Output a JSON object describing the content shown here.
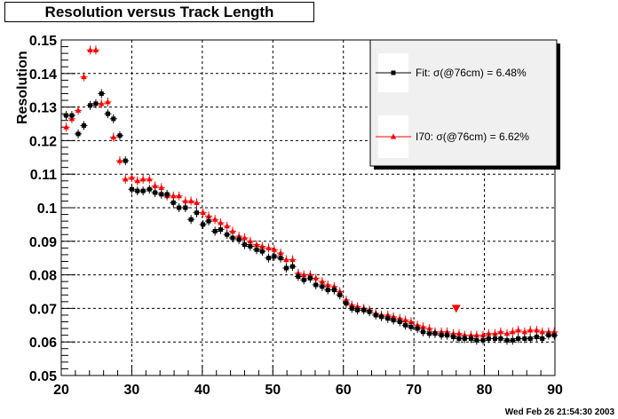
{
  "chart_data": {
    "type": "scatter",
    "title": "Resolution versus Track Length",
    "ylabel": "Resolution",
    "xlabel": "",
    "xlim": [
      20,
      90
    ],
    "ylim": [
      0.05,
      0.15
    ],
    "grid": true,
    "legend_position": "top-right",
    "x_ticks": [
      "20",
      "30",
      "40",
      "50",
      "60",
      "70",
      "80",
      "90"
    ],
    "y_ticks": [
      "0.05",
      "0.06",
      "0.07",
      "0.08",
      "0.09",
      "0.1",
      "0.11",
      "0.12",
      "0.13",
      "0.14",
      "0.15"
    ],
    "series": [
      {
        "name": "Fit:  σ(@76cm) =  6.48%",
        "color": "#000000",
        "marker": "square",
        "x": [
          20.7,
          21.5,
          22.4,
          23.2,
          24.1,
          24.9,
          25.7,
          26.6,
          27.4,
          28.3,
          29.1,
          30.0,
          30.8,
          31.6,
          32.5,
          33.3,
          34.2,
          35.0,
          35.9,
          36.7,
          37.6,
          38.4,
          39.2,
          40.1,
          40.9,
          41.8,
          42.6,
          43.5,
          44.3,
          45.2,
          46.0,
          46.8,
          47.7,
          48.5,
          49.4,
          50.2,
          51.1,
          51.9,
          52.8,
          53.6,
          54.4,
          55.3,
          56.1,
          57.0,
          57.8,
          58.7,
          59.5,
          60.4,
          61.2,
          62.0,
          62.9,
          63.7,
          64.6,
          65.4,
          66.3,
          67.1,
          68.0,
          68.8,
          69.6,
          70.5,
          71.3,
          72.2,
          73.0,
          73.9,
          74.7,
          75.6,
          76.4,
          77.2,
          78.1,
          78.9,
          79.8,
          80.6,
          81.5,
          82.3,
          83.2,
          84.0,
          84.8,
          85.7,
          86.5,
          87.4,
          88.2,
          89.1,
          89.9
        ],
        "y": [
          0.1275,
          0.1275,
          0.122,
          0.1245,
          0.1305,
          0.131,
          0.134,
          0.128,
          0.1265,
          0.1215,
          0.114,
          0.1055,
          0.105,
          0.105,
          0.1055,
          0.1045,
          0.104,
          0.104,
          0.1015,
          0.1,
          0.1,
          0.0965,
          0.0985,
          0.095,
          0.096,
          0.093,
          0.0935,
          0.092,
          0.091,
          0.0905,
          0.089,
          0.0885,
          0.0875,
          0.087,
          0.085,
          0.0855,
          0.085,
          0.082,
          0.0825,
          0.0795,
          0.0785,
          0.079,
          0.077,
          0.0765,
          0.0755,
          0.0755,
          0.074,
          0.0715,
          0.07,
          0.0695,
          0.0695,
          0.069,
          0.068,
          0.0675,
          0.067,
          0.0665,
          0.066,
          0.065,
          0.0645,
          0.064,
          0.063,
          0.0625,
          0.0625,
          0.062,
          0.062,
          0.0615,
          0.061,
          0.061,
          0.061,
          0.0605,
          0.0605,
          0.061,
          0.061,
          0.061,
          0.0605,
          0.0605,
          0.061,
          0.061,
          0.061,
          0.0615,
          0.061,
          0.062,
          0.062
        ]
      },
      {
        "name": "I70:  σ(@76cm) =  6.62%",
        "color": "#ff0000",
        "marker": "triangle",
        "x": [
          20.7,
          21.5,
          22.4,
          23.2,
          24.1,
          24.9,
          25.7,
          26.6,
          27.4,
          28.3,
          29.1,
          30.0,
          30.8,
          31.6,
          32.5,
          33.3,
          34.2,
          35.0,
          35.9,
          36.7,
          37.6,
          38.4,
          39.2,
          40.1,
          40.9,
          41.8,
          42.6,
          43.5,
          44.3,
          45.2,
          46.0,
          46.8,
          47.7,
          48.5,
          49.4,
          50.2,
          51.1,
          51.9,
          52.8,
          53.6,
          54.4,
          55.3,
          56.1,
          57.0,
          57.8,
          58.7,
          59.5,
          60.4,
          61.2,
          62.0,
          62.9,
          63.7,
          64.6,
          65.4,
          66.3,
          67.1,
          68.0,
          68.8,
          69.6,
          70.5,
          71.3,
          72.2,
          73.0,
          73.9,
          74.7,
          75.6,
          76.4,
          77.2,
          78.1,
          78.9,
          79.8,
          80.6,
          81.5,
          82.3,
          83.2,
          84.0,
          84.8,
          85.7,
          86.5,
          87.4,
          88.2,
          89.1,
          89.9
        ],
        "y": [
          0.124,
          0.1265,
          0.129,
          0.139,
          0.147,
          0.147,
          0.131,
          0.1315,
          0.121,
          0.114,
          0.1085,
          0.109,
          0.108,
          0.1085,
          0.1085,
          0.1065,
          0.106,
          0.1035,
          0.1035,
          0.1035,
          0.102,
          0.102,
          0.1015,
          0.0985,
          0.0975,
          0.0965,
          0.0955,
          0.0945,
          0.093,
          0.0915,
          0.091,
          0.09,
          0.089,
          0.0885,
          0.088,
          0.0875,
          0.0865,
          0.0845,
          0.0845,
          0.0805,
          0.08,
          0.08,
          0.079,
          0.078,
          0.077,
          0.0765,
          0.075,
          0.0725,
          0.071,
          0.0705,
          0.07,
          0.0695,
          0.0685,
          0.068,
          0.068,
          0.0675,
          0.067,
          0.0665,
          0.066,
          0.065,
          0.0645,
          0.064,
          0.063,
          0.063,
          0.063,
          0.0625,
          0.0625,
          0.062,
          0.062,
          0.062,
          0.062,
          0.0625,
          0.0625,
          0.063,
          0.0625,
          0.063,
          0.0635,
          0.063,
          0.0635,
          0.0635,
          0.063,
          0.063,
          0.063
        ],
        "annotation": {
          "x": 76.0,
          "y": 0.07,
          "marker": "inverted-triangle"
        }
      }
    ],
    "legend": {
      "entries": [
        {
          "text": "Fit:  σ(@76cm) =  6.48%",
          "color": "#000000"
        },
        {
          "text": "I70:  σ(@76cm) =  6.62%",
          "color": "#ff0000"
        }
      ],
      "background": "#f0f0f0"
    }
  },
  "footer": {
    "timestamp": "Wed Feb 26 21:54:30 2003"
  }
}
